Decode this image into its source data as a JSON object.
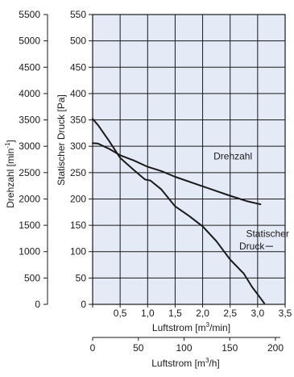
{
  "colors": {
    "plot_background": "#e4ebf7",
    "grid": "#1a1a1a",
    "curve": "#1a1a1a",
    "text": "#1a1a1a"
  },
  "chart_data": {
    "type": "line",
    "x_axis": {
      "label_prefix": "Luftstrom [m",
      "label_sup": "3",
      "label_suffix": "/min]",
      "range": [
        0,
        3.5
      ],
      "ticks": [
        0,
        0.5,
        1.0,
        1.5,
        2.0,
        2.5,
        3.0,
        3.5
      ],
      "tick_labels": [
        "0",
        "0,5",
        "1,0",
        "1,5",
        "2,0",
        "2,5",
        "3,0",
        "3,5"
      ]
    },
    "x_axis_secondary": {
      "label_prefix": "Luftstrom [m",
      "label_sup": "3",
      "label_suffix": "/h]",
      "range": [
        0,
        210
      ],
      "ticks": [
        0,
        50,
        100,
        150,
        200
      ],
      "tick_labels": [
        "0",
        "50",
        "100",
        "150",
        "200"
      ]
    },
    "y_axis_left": {
      "label_prefix": "Drehzahl [min",
      "label_sup": "-1",
      "label_suffix": "]",
      "range": [
        0,
        5500
      ],
      "ticks": [
        0,
        500,
        1000,
        1500,
        2000,
        2500,
        3000,
        3500,
        4000,
        4500,
        5000,
        5500
      ],
      "tick_labels": [
        "0",
        "500",
        "1000",
        "1500",
        "2000",
        "2500",
        "3000",
        "3500",
        "4000",
        "4500",
        "5000",
        "5500"
      ]
    },
    "y_axis_right": {
      "label": "Statischer Druck [Pa]",
      "range": [
        0,
        550
      ],
      "ticks": [
        0,
        50,
        100,
        150,
        200,
        250,
        300,
        350,
        400,
        450,
        500,
        550
      ],
      "tick_labels": [
        "0",
        "50",
        "100",
        "150",
        "200",
        "250",
        "300",
        "350",
        "400",
        "450",
        "500",
        "550"
      ]
    },
    "grid": true,
    "series": [
      {
        "name": "Drehzahl",
        "axis": "left",
        "x": [
          0.0,
          0.1,
          0.3,
          0.5,
          0.75,
          1.0,
          1.25,
          1.5,
          2.0,
          2.5,
          2.8,
          3.0,
          3.05
        ],
        "y": [
          3060,
          3050,
          2950,
          2830,
          2730,
          2610,
          2530,
          2420,
          2240,
          2060,
          1960,
          1910,
          1900
        ]
      },
      {
        "name": "Statischer Druck",
        "axis": "right",
        "x": [
          0.0,
          0.1,
          0.3,
          0.5,
          0.75,
          0.95,
          1.05,
          1.25,
          1.5,
          1.75,
          2.0,
          2.25,
          2.5,
          2.75,
          2.9,
          3.05,
          3.12
        ],
        "y": [
          352,
          340,
          310,
          278,
          255,
          237,
          235,
          218,
          186,
          168,
          148,
          120,
          85,
          58,
          33,
          12,
          2
        ]
      }
    ],
    "annotations": [
      {
        "text": "Drehzahl",
        "x": 2.55,
        "y_left": 2750
      },
      {
        "text": "Statischer",
        "x": 3.18,
        "y_right": 128
      },
      {
        "text": "Druck",
        "x": 3.1,
        "y_right": 104
      }
    ]
  }
}
